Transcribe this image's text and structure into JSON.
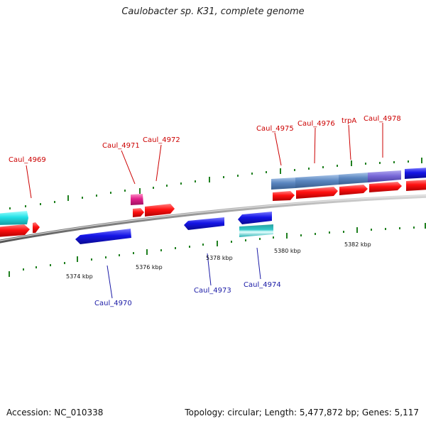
{
  "title": "Caulobacter sp. K31, complete genome",
  "footer": {
    "accession": "Accession: NC_010338",
    "summary": "Topology: circular; Length: 5,477,872 bp; Genes: 5,117"
  },
  "colors": {
    "red": "#ff1010",
    "blue": "#1515e6",
    "cyan": "#22e0e6",
    "steel_blue": "#5b86c0",
    "slate_purple": "#7868d8",
    "magenta": "#e0208a",
    "tick_green": "#208020",
    "backbone_gray": "#888888"
  },
  "scale_labels": [
    "5374 kbp",
    "5376 kbp",
    "5378 kbp",
    "5380 kbp",
    "5382 kbp"
  ],
  "genes_top": [
    {
      "name": "Caul_4969"
    },
    {
      "name": "Caul_4971"
    },
    {
      "name": "Caul_4972"
    },
    {
      "name": "Caul_4975"
    },
    {
      "name": "Caul_4976"
    },
    {
      "name": "trpA"
    },
    {
      "name": "Caul_4978"
    }
  ],
  "genes_bottom": [
    {
      "name": "Caul_4970"
    },
    {
      "name": "Caul_4973"
    },
    {
      "name": "Caul_4974"
    }
  ]
}
